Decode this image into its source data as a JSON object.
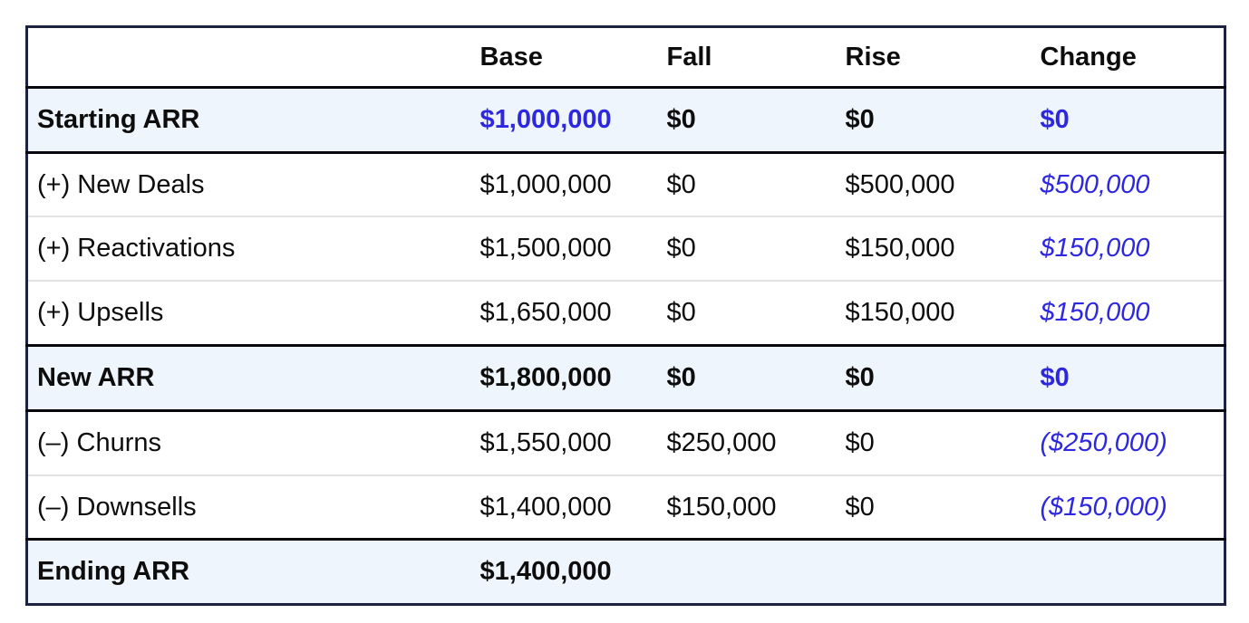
{
  "table": {
    "columns": [
      "",
      "Base",
      "Fall",
      "Rise",
      "Change"
    ],
    "colors": {
      "accent_blue": "#2d28e0",
      "section_bg": "#eff5fc",
      "outer_border": "#1d2142",
      "dark_border": "#07070d",
      "light_border": "#e3e3e3",
      "text_black": "#0d0d0d",
      "page_bg": "#ffffff"
    },
    "rows": [
      {
        "label": "Starting ARR",
        "base": "$1,000,000",
        "fall": "$0",
        "rise": "$0",
        "change": "$0"
      },
      {
        "label": "(+) New Deals",
        "base": "$1,000,000",
        "fall": "$0",
        "rise": "$500,000",
        "change": "$500,000"
      },
      {
        "label": "(+) Reactivations",
        "base": "$1,500,000",
        "fall": "$0",
        "rise": "$150,000",
        "change": "$150,000"
      },
      {
        "label": "(+) Upsells",
        "base": "$1,650,000",
        "fall": "$0",
        "rise": "$150,000",
        "change": "$150,000"
      },
      {
        "label": "New ARR",
        "base": "$1,800,000",
        "fall": "$0",
        "rise": "$0",
        "change": "$0"
      },
      {
        "label": "(–) Churns",
        "base": "$1,550,000",
        "fall": "$250,000",
        "rise": "$0",
        "change": "($250,000)"
      },
      {
        "label": "(–) Downsells",
        "base": "$1,400,000",
        "fall": "$150,000",
        "rise": "$0",
        "change": "($150,000)"
      },
      {
        "label": "Ending ARR",
        "base": "$1,400,000",
        "fall": "",
        "rise": "",
        "change": ""
      }
    ]
  }
}
